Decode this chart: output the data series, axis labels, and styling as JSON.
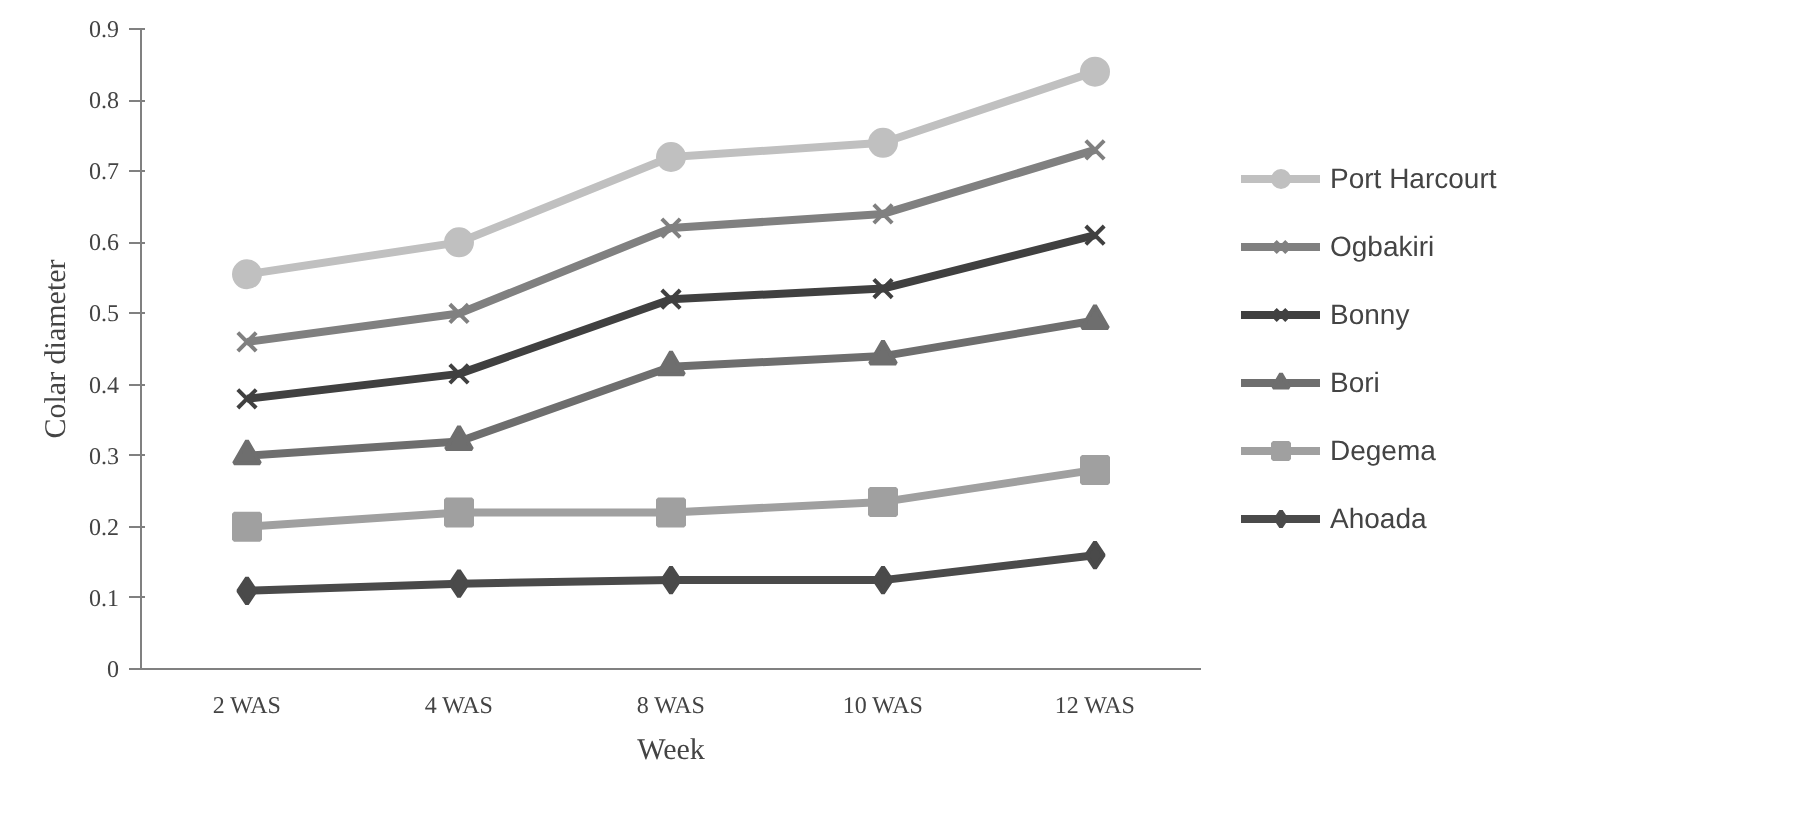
{
  "chart_data": {
    "type": "line",
    "xlabel": "Week",
    "ylabel": "Colar diameter",
    "categories": [
      "2 WAS",
      "4 WAS",
      "8 WAS",
      "10 WAS",
      "12 WAS"
    ],
    "series": [
      {
        "name": "Port Harcourt",
        "color": "#c0c0c0",
        "marker": "circle",
        "values": [
          0.555,
          0.6,
          0.72,
          0.74,
          0.84
        ]
      },
      {
        "name": "Ogbakiri",
        "color": "#808080",
        "marker": "cross",
        "values": [
          0.46,
          0.5,
          0.62,
          0.64,
          0.73
        ]
      },
      {
        "name": "Bonny",
        "color": "#404040",
        "marker": "cross",
        "values": [
          0.38,
          0.415,
          0.52,
          0.535,
          0.61
        ]
      },
      {
        "name": "Bori",
        "color": "#6e6e6e",
        "marker": "triangle",
        "values": [
          0.3,
          0.32,
          0.425,
          0.44,
          0.49
        ]
      },
      {
        "name": "Degema",
        "color": "#a0a0a0",
        "marker": "square",
        "values": [
          0.2,
          0.22,
          0.22,
          0.235,
          0.28
        ]
      },
      {
        "name": "Ahoada",
        "color": "#4a4a4a",
        "marker": "diamond",
        "values": [
          0.11,
          0.12,
          0.125,
          0.125,
          0.16
        ]
      }
    ],
    "ylim": [
      0,
      0.9
    ],
    "yticks": [
      0,
      0.1,
      0.2,
      0.3,
      0.4,
      0.5,
      0.6,
      0.7,
      0.8,
      0.9
    ],
    "grid": false,
    "legend": "right"
  }
}
